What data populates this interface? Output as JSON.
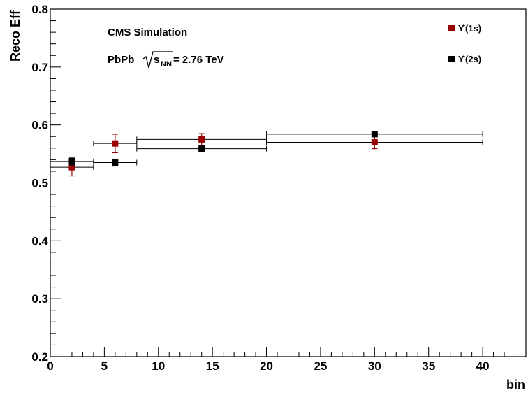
{
  "chart_data": {
    "type": "scatter",
    "title": "",
    "xlabel": "bin",
    "ylabel": "Reco Eff",
    "xlim": [
      0,
      44
    ],
    "ylim": [
      0.2,
      0.8
    ],
    "x_ticks": [
      0,
      5,
      10,
      15,
      20,
      25,
      30,
      35,
      40
    ],
    "y_ticks": [
      0.2,
      0.3,
      0.4,
      0.5,
      0.6,
      0.7,
      0.8
    ],
    "x_tick_labels": [
      "0",
      "5",
      "10",
      "15",
      "20",
      "25",
      "30",
      "35",
      "40"
    ],
    "y_tick_labels": [
      "0.2",
      "0.3",
      "0.4",
      "0.5",
      "0.6",
      "0.7",
      "0.8"
    ],
    "grid": false,
    "legend_position": "top-right",
    "annotations": {
      "experiment": "CMS Simulation",
      "system": "PbPb",
      "energy_symbol": "s",
      "energy_subscript": "NN",
      "energy_value": " = 2.76 TeV"
    },
    "series": [
      {
        "name": "ϒ(1s)",
        "color": "#990000",
        "points": [
          {
            "x": 2,
            "xlo": 0,
            "xhi": 4,
            "y": 0.527,
            "ylo": 0.512,
            "yhi": 0.542
          },
          {
            "x": 6,
            "xlo": 4,
            "xhi": 8,
            "y": 0.568,
            "ylo": 0.552,
            "yhi": 0.584
          },
          {
            "x": 14,
            "xlo": 8,
            "xhi": 20,
            "y": 0.575,
            "ylo": 0.565,
            "yhi": 0.585
          },
          {
            "x": 30,
            "xlo": 20,
            "xhi": 40,
            "y": 0.57,
            "ylo": 0.559,
            "yhi": 0.581
          }
        ]
      },
      {
        "name": "ϒ(2s)",
        "color": "#000000",
        "points": [
          {
            "x": 2,
            "xlo": 0,
            "xhi": 4,
            "y": 0.537,
            "ylo": 0.531,
            "yhi": 0.543
          },
          {
            "x": 6,
            "xlo": 4,
            "xhi": 8,
            "y": 0.535,
            "ylo": 0.529,
            "yhi": 0.541
          },
          {
            "x": 14,
            "xlo": 8,
            "xhi": 20,
            "y": 0.559,
            "ylo": 0.554,
            "yhi": 0.564
          },
          {
            "x": 30,
            "xlo": 20,
            "xhi": 40,
            "y": 0.584,
            "ylo": 0.58,
            "yhi": 0.588
          }
        ]
      }
    ]
  }
}
